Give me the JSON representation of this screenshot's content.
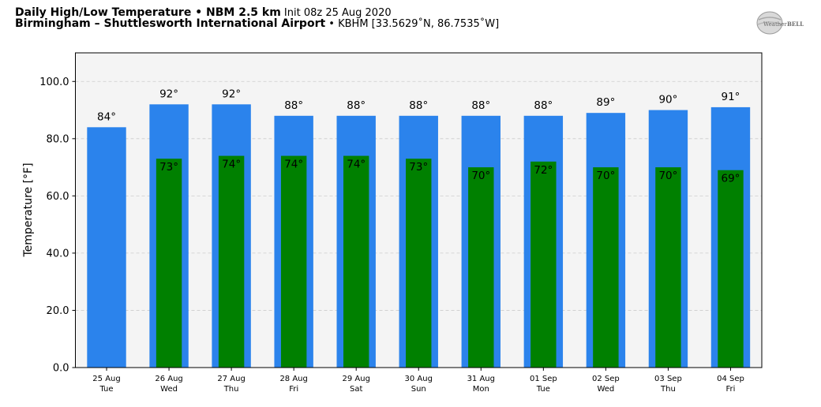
{
  "header": {
    "line1_bold": "Daily High/Low Temperature • NBM 2.5 km",
    "line1_rest": " Init 08z 25 Aug 2020",
    "line2_bold": "Birmingham – Shuttlesworth International Airport",
    "line2_rest": " • KBHM [33.5629˚N, 86.7535˚W]"
  },
  "logo": {
    "text_left": "Weather",
    "text_right": "BELL",
    "icon": "weatherbell-globe-logo"
  },
  "colors": {
    "high": "#2b83ec",
    "low": "#008000",
    "plot_bg": "#f4f4f4",
    "grid": "#cccccc"
  },
  "chart_data": {
    "type": "bar",
    "title": "Daily High/Low Temperature • NBM 2.5 km",
    "xlabel": "",
    "ylabel": "Temperature [°F]",
    "ylim": [
      0,
      110
    ],
    "yticks": [
      "0.0",
      "20.0",
      "40.0",
      "60.0",
      "80.0",
      "100.0"
    ],
    "ytick_values": [
      0,
      20,
      40,
      60,
      80,
      100
    ],
    "grid": true,
    "categories": [
      {
        "date": "25 Aug",
        "day": "Tue"
      },
      {
        "date": "26 Aug",
        "day": "Wed"
      },
      {
        "date": "27 Aug",
        "day": "Thu"
      },
      {
        "date": "28 Aug",
        "day": "Fri"
      },
      {
        "date": "29 Aug",
        "day": "Sat"
      },
      {
        "date": "30 Aug",
        "day": "Sun"
      },
      {
        "date": "31 Aug",
        "day": "Mon"
      },
      {
        "date": "01 Sep",
        "day": "Tue"
      },
      {
        "date": "02 Sep",
        "day": "Wed"
      },
      {
        "date": "03 Sep",
        "day": "Thu"
      },
      {
        "date": "04 Sep",
        "day": "Fri"
      }
    ],
    "series": [
      {
        "key": "high",
        "values": [
          84,
          92,
          92,
          88,
          88,
          88,
          88,
          88,
          89,
          90,
          91
        ],
        "labels": [
          "84°",
          "92°",
          "92°",
          "88°",
          "88°",
          "88°",
          "88°",
          "88°",
          "89°",
          "90°",
          "91°"
        ]
      },
      {
        "key": "low",
        "values": [
          null,
          73,
          74,
          74,
          74,
          73,
          70,
          72,
          70,
          70,
          69
        ],
        "labels": [
          "",
          "73°",
          "74°",
          "74°",
          "74°",
          "73°",
          "70°",
          "72°",
          "70°",
          "70°",
          "69°"
        ]
      }
    ]
  }
}
